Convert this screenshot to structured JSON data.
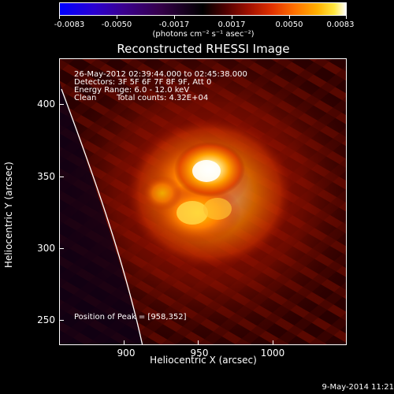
{
  "colorbar": {
    "labels": [
      "-0.0083",
      "-0.0050",
      "-0.0017",
      "0.0017",
      "0.0050",
      "0.0083"
    ],
    "units": "(photons cm⁻² s⁻¹ asec⁻²)"
  },
  "title": "Reconstructed RHESSI Image",
  "info": {
    "time_range": "26-May-2012 02:39:44.000 to 02:45:38.000",
    "detectors": "Detectors: 3F 5F 6F 7F 8F 9F, Att 0",
    "energy": "Energy Range: 6.0 - 12.0 keV",
    "method": "Clean",
    "counts": "Total counts: 4.32E+04",
    "peak": "Position of Peak = [958,352]"
  },
  "axes": {
    "xlabel": "Heliocentric X (arcsec)",
    "ylabel": "Heliocentric Y (arcsec)",
    "x_ticks": [
      "900",
      "950",
      "1000"
    ],
    "y_ticks": [
      "400",
      "350",
      "300",
      "250"
    ],
    "x_range": [
      856,
      1042
    ],
    "y_range": [
      233,
      419
    ]
  },
  "footer": "9-May-2014 11:21",
  "colors": {
    "background": "#000000",
    "limb": "#ffffff"
  }
}
